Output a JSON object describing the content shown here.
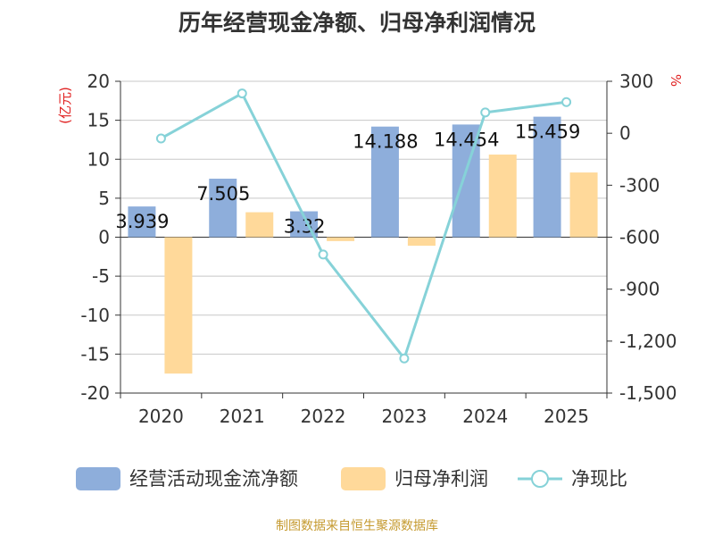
{
  "title": "历年经营现金净额、归母净利润情况",
  "source": "制图数据来自恒生聚源数据库",
  "chart_data": {
    "type": "bar",
    "title": "历年经营现金净额、归母净利润情况",
    "categories": [
      "2020",
      "2021",
      "2022",
      "2023",
      "2024",
      "2025"
    ],
    "y_left": {
      "label": "(亿元)",
      "ylim": [
        -20,
        20
      ],
      "ticks": [
        "20",
        "15",
        "10",
        "5",
        "0",
        "-5",
        "-10",
        "-15",
        "-20"
      ]
    },
    "y_right": {
      "label": "%",
      "ylim": [
        -1500,
        300
      ],
      "ticks": [
        "300",
        "0",
        "-300",
        "-600",
        "-900",
        "-1,200",
        "-1,500"
      ]
    },
    "series": [
      {
        "name": "经营活动现金流净额",
        "type": "bar",
        "axis": "left",
        "color": "#8eaedb",
        "values": [
          3.939,
          7.505,
          3.32,
          14.188,
          14.454,
          15.459
        ],
        "labels": [
          "3.939",
          "7.505",
          "3.32",
          "14.188",
          "14.454",
          "15.459"
        ]
      },
      {
        "name": "归母净利润",
        "type": "bar",
        "axis": "left",
        "color": "#ffd99a",
        "values": [
          -17.5,
          3.2,
          -0.5,
          -1.1,
          10.6,
          8.3
        ]
      },
      {
        "name": "净现比",
        "type": "line",
        "axis": "right",
        "color": "#86d2d8",
        "values": [
          -30,
          230,
          -700,
          -1300,
          120,
          180
        ]
      }
    ],
    "grid": true,
    "legend": "bottom"
  }
}
